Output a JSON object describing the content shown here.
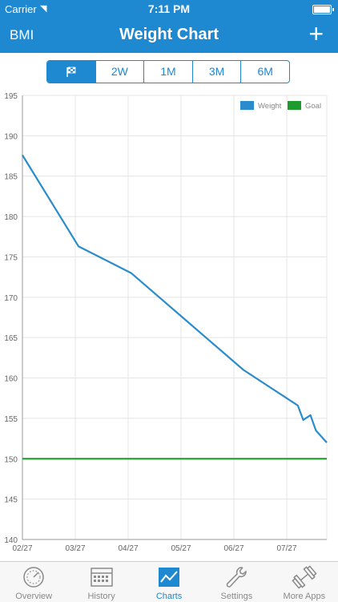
{
  "status": {
    "carrier": "Carrier",
    "time": "7:11 PM"
  },
  "nav": {
    "left": "BMI",
    "title": "Weight Chart",
    "add": "+"
  },
  "segments": [
    "",
    "2W",
    "1M",
    "3M",
    "6M"
  ],
  "chart_data": {
    "type": "line",
    "x": [
      "02/27",
      "03/27",
      "04/27",
      "05/27",
      "06/27",
      "07/27"
    ],
    "ylim": [
      140,
      195
    ],
    "yticks": [
      140,
      145,
      150,
      155,
      160,
      165,
      170,
      175,
      180,
      185,
      190,
      195
    ],
    "grid": true,
    "legend": "top-right",
    "series": [
      {
        "name": "Weight",
        "color": "#2a8ccc",
        "points": [
          [
            0,
            187.6
          ],
          [
            31,
            176.3
          ],
          [
            60,
            173.0
          ],
          [
            91,
            167.0
          ],
          [
            122,
            161.0
          ],
          [
            152,
            156.6
          ],
          [
            155,
            154.8
          ],
          [
            159,
            155.4
          ],
          [
            162,
            153.5
          ],
          [
            168,
            152.0
          ]
        ]
      },
      {
        "name": "Goal",
        "color": "#1f9a2f",
        "points": [
          [
            0,
            150
          ],
          [
            168,
            150
          ]
        ]
      }
    ]
  },
  "tabs": [
    {
      "label": "Overview",
      "icon": "speedometer-icon"
    },
    {
      "label": "History",
      "icon": "calendar-icon"
    },
    {
      "label": "Charts",
      "icon": "chart-icon"
    },
    {
      "label": "Settings",
      "icon": "wrench-icon"
    },
    {
      "label": "More Apps",
      "icon": "dumbbell-icon"
    }
  ],
  "colors": {
    "accent": "#1e88d0",
    "grid": "#e4e4e4"
  }
}
